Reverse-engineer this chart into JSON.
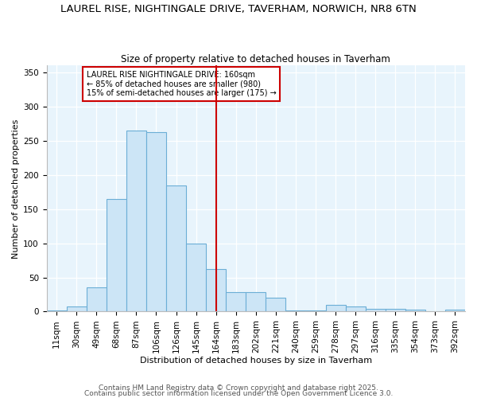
{
  "title_line1": "LAUREL RISE, NIGHTINGALE DRIVE, TAVERHAM, NORWICH, NR8 6TN",
  "title_line2": "Size of property relative to detached houses in Taverham",
  "xlabel": "Distribution of detached houses by size in Taverham",
  "ylabel": "Number of detached properties",
  "categories": [
    "11sqm",
    "30sqm",
    "49sqm",
    "68sqm",
    "87sqm",
    "106sqm",
    "126sqm",
    "145sqm",
    "164sqm",
    "183sqm",
    "202sqm",
    "221sqm",
    "240sqm",
    "259sqm",
    "278sqm",
    "297sqm",
    "316sqm",
    "335sqm",
    "354sqm",
    "373sqm",
    "392sqm"
  ],
  "values": [
    2,
    8,
    35,
    165,
    265,
    263,
    185,
    100,
    62,
    28,
    28,
    20,
    2,
    2,
    10,
    7,
    4,
    4,
    3,
    1,
    3
  ],
  "bar_color": "#cce5f6",
  "bar_edge_color": "#6baed6",
  "vline_color": "#cc0000",
  "annotation_text": "LAUREL RISE NIGHTINGALE DRIVE: 160sqm\n← 85% of detached houses are smaller (980)\n15% of semi-detached houses are larger (175) →",
  "annotation_box_color": "#ffffff",
  "annotation_box_edge": "#cc0000",
  "ylim": [
    0,
    360
  ],
  "yticks": [
    0,
    50,
    100,
    150,
    200,
    250,
    300,
    350
  ],
  "footer_line1": "Contains HM Land Registry data © Crown copyright and database right 2025.",
  "footer_line2": "Contains public sector information licensed under the Open Government Licence 3.0.",
  "bg_color": "#e8f4fc",
  "fig_bg_color": "#ffffff",
  "title_fontsize": 9.5,
  "subtitle_fontsize": 8.5,
  "axis_label_fontsize": 8,
  "tick_fontsize": 7.5,
  "annotation_fontsize": 7,
  "footer_fontsize": 6.5,
  "vline_bar_index": 8
}
